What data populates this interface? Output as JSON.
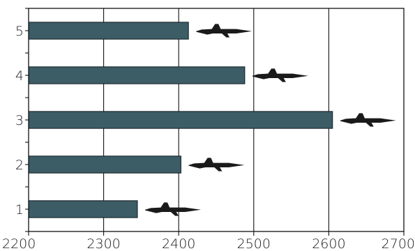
{
  "chart_data": {
    "type": "bar",
    "orientation": "horizontal",
    "categories": [
      "1",
      "2",
      "3",
      "4",
      "5"
    ],
    "values": [
      2345,
      2403,
      2605,
      2488,
      2413
    ],
    "xlim": [
      2200,
      2700
    ],
    "xticks": [
      2200,
      2300,
      2400,
      2500,
      2600,
      2700
    ],
    "grid": "vertical",
    "bar_color": "#3c5c66",
    "decorations": "fighter-jet silhouette at the end of each bar"
  }
}
